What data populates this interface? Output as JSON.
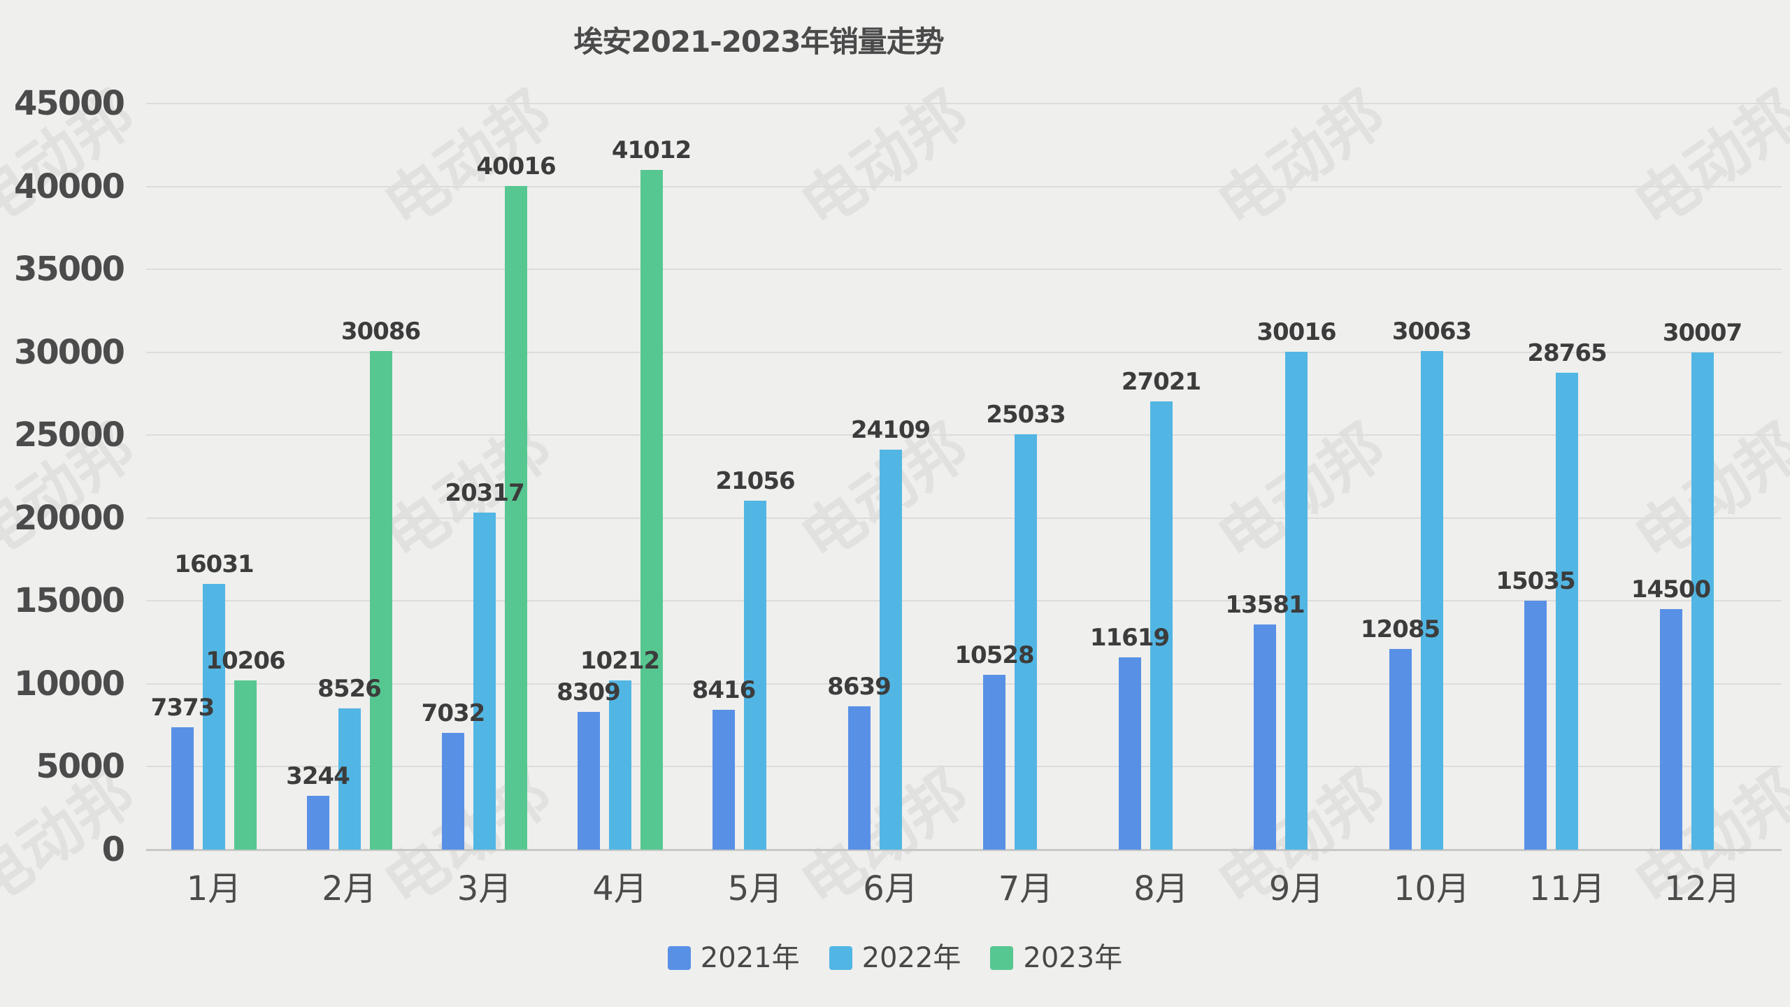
{
  "title": "埃安2021-2023年销量走势",
  "watermark": {
    "text": "电动邦"
  },
  "chart_data": {
    "type": "bar",
    "title": "埃安2021-2023年销量走势",
    "xlabel": "",
    "ylabel": "",
    "categories": [
      "1月",
      "2月",
      "3月",
      "4月",
      "5月",
      "6月",
      "7月",
      "8月",
      "9月",
      "10月",
      "11月",
      "12月"
    ],
    "series": [
      {
        "name": "2021年",
        "color": "#5890E6",
        "values": [
          7373,
          3244,
          7032,
          8309,
          8416,
          8639,
          10528,
          11619,
          13581,
          12085,
          15035,
          14500
        ]
      },
      {
        "name": "2022年",
        "color": "#52B6E4",
        "values": [
          16031,
          8526,
          20317,
          10212,
          21056,
          24109,
          25033,
          27021,
          30016,
          30063,
          28765,
          30007
        ]
      },
      {
        "name": "2023年",
        "color": "#57C791",
        "values": [
          10206,
          30086,
          40016,
          41012,
          null,
          null,
          null,
          null,
          null,
          null,
          null,
          null
        ]
      }
    ],
    "ylim": [
      0,
      45000
    ],
    "y_ticks": [
      0,
      5000,
      10000,
      15000,
      20000,
      25000,
      30000,
      35000,
      40000,
      45000
    ],
    "grid": true,
    "legend_position": "bottom",
    "bar_value_labels": true
  }
}
